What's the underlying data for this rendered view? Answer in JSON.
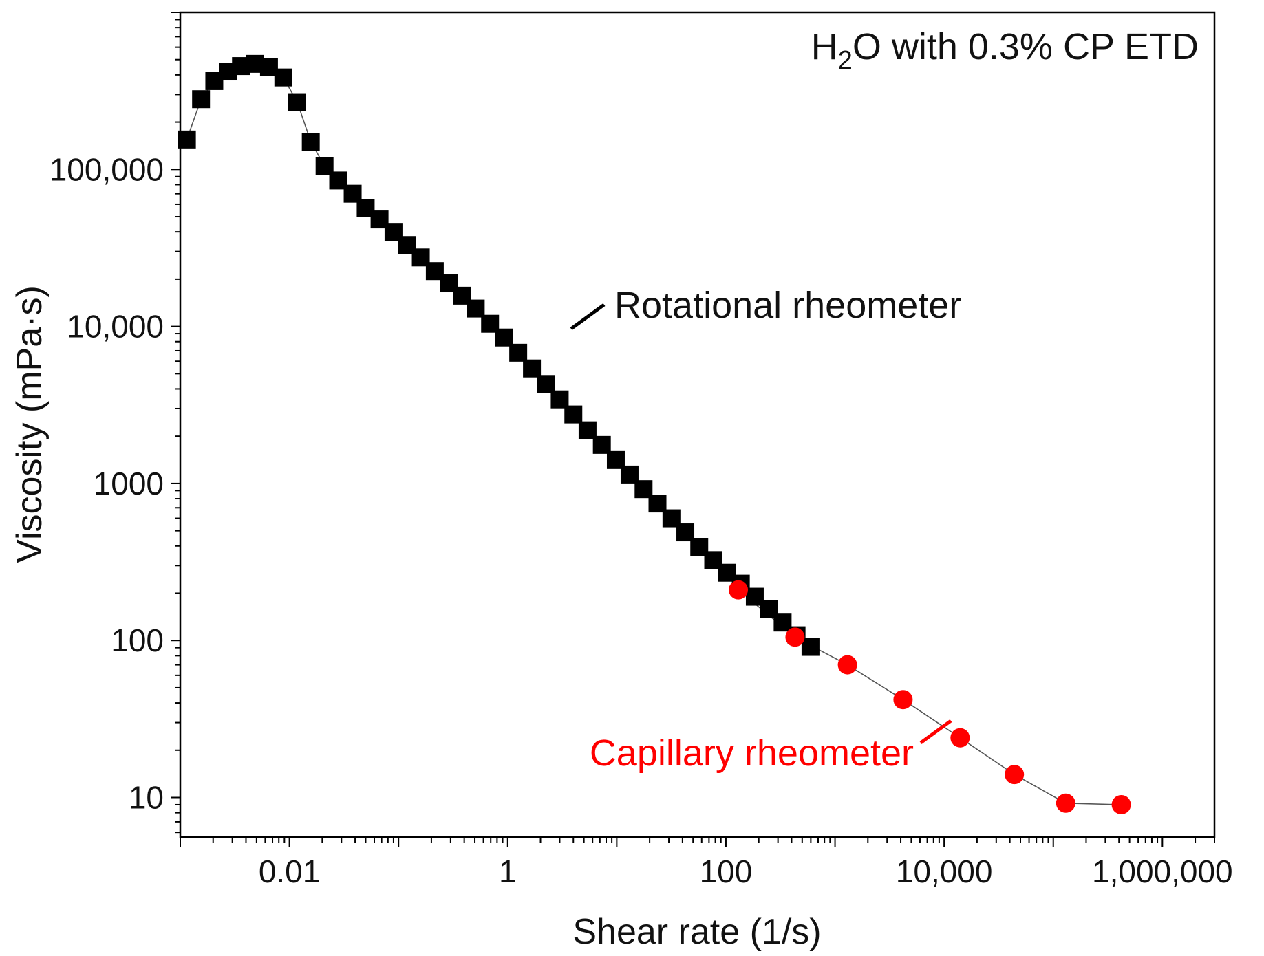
{
  "chart_data": {
    "type": "scatter",
    "title": "H2O with 0.3% CP ETD",
    "title_parts": {
      "pre": "H",
      "sub": "2",
      "post": "O with 0.3% CP ETD"
    },
    "xlabel": "Shear rate (1/s)",
    "ylabel": "Viscosity (mPa·s)",
    "xscale": "log",
    "yscale": "log",
    "xlim": [
      0.001,
      3000000
    ],
    "ylim": [
      5.6,
      1000000
    ],
    "legend": "none",
    "grid": false,
    "x_ticks": [
      {
        "value": 0.01,
        "label": "0.01"
      },
      {
        "value": 1,
        "label": "1"
      },
      {
        "value": 100,
        "label": "100"
      },
      {
        "value": 10000,
        "label": "10,000"
      },
      {
        "value": 1000000,
        "label": "1,000,000"
      }
    ],
    "y_ticks": [
      {
        "value": 10,
        "label": "10"
      },
      {
        "value": 100,
        "label": "100"
      },
      {
        "value": 1000,
        "label": "1000"
      },
      {
        "value": 10000,
        "label": "10,000"
      },
      {
        "value": 100000,
        "label": "100,000"
      }
    ],
    "series": [
      {
        "name": "Rotational rheometer",
        "marker": "square",
        "color": "#000000",
        "annotation": "Rotational rheometer",
        "annotation_color": "#111111",
        "points": [
          [
            0.00115,
            155000
          ],
          [
            0.00155,
            280000
          ],
          [
            0.00205,
            365000
          ],
          [
            0.00275,
            420000
          ],
          [
            0.0036,
            455000
          ],
          [
            0.0048,
            470000
          ],
          [
            0.0065,
            450000
          ],
          [
            0.0088,
            385000
          ],
          [
            0.0118,
            268000
          ],
          [
            0.0157,
            150000
          ],
          [
            0.021,
            105000
          ],
          [
            0.028,
            85000
          ],
          [
            0.038,
            70000
          ],
          [
            0.05,
            57000
          ],
          [
            0.067,
            48000
          ],
          [
            0.09,
            40000
          ],
          [
            0.12,
            33000
          ],
          [
            0.16,
            27500
          ],
          [
            0.215,
            22500
          ],
          [
            0.29,
            18800
          ],
          [
            0.38,
            15700
          ],
          [
            0.51,
            13000
          ],
          [
            0.69,
            10400
          ],
          [
            0.93,
            8500
          ],
          [
            1.25,
            6800
          ],
          [
            1.67,
            5400
          ],
          [
            2.24,
            4300
          ],
          [
            3.0,
            3430
          ],
          [
            4.0,
            2750
          ],
          [
            5.4,
            2180
          ],
          [
            7.3,
            1760
          ],
          [
            9.8,
            1410
          ],
          [
            13.1,
            1140
          ],
          [
            17.6,
            920
          ],
          [
            23.6,
            745
          ],
          [
            31.7,
            600
          ],
          [
            42.5,
            488
          ],
          [
            57,
            395
          ],
          [
            76.5,
            325
          ],
          [
            102,
            270
          ],
          [
            137,
            230
          ],
          [
            184,
            190
          ],
          [
            247,
            158
          ],
          [
            331,
            130
          ],
          [
            444,
            108
          ],
          [
            596,
            91
          ]
        ]
      },
      {
        "name": "Capillary rheometer",
        "marker": "circle",
        "color": "#ff0000",
        "annotation": "Capillary rheometer",
        "annotation_color": "#ff0000",
        "points": [
          [
            130,
            210
          ],
          [
            430,
            105
          ],
          [
            1300,
            70
          ],
          [
            4200,
            42
          ],
          [
            14000,
            24
          ],
          [
            44000,
            14
          ],
          [
            130000,
            9.2
          ],
          [
            420000,
            9.0
          ]
        ]
      }
    ]
  }
}
